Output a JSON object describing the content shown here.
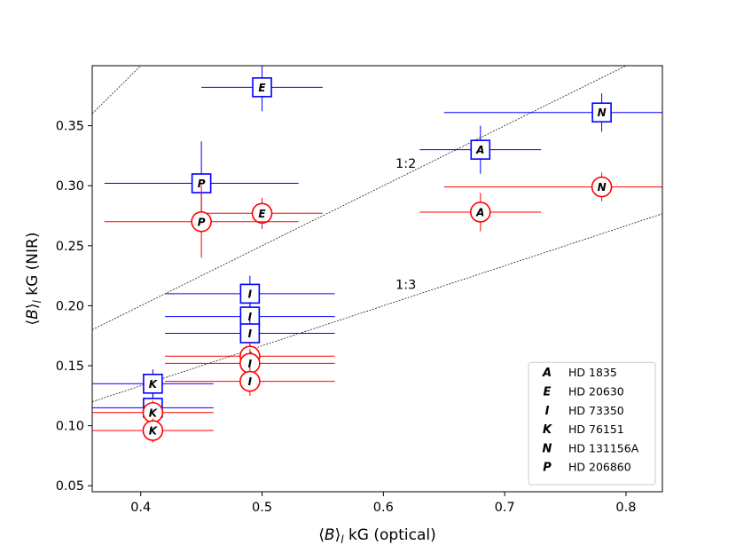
{
  "chart_data": {
    "type": "scatter",
    "title": "",
    "xlabel": "⟨B⟩ₗ kG (optical)",
    "xlabel_parts": {
      "open": "⟨",
      "var": "B",
      "close": "⟩",
      "sub": "l",
      "unit": " kG (optical)"
    },
    "ylabel": "⟨B⟩ₗ kG (NIR)",
    "ylabel_parts": {
      "open": "⟨",
      "var": "B",
      "close": "⟩",
      "sub": "l",
      "unit": " kG (NIR)"
    },
    "xlim": [
      0.36,
      0.83
    ],
    "ylim": [
      0.045,
      0.4
    ],
    "xticks": [
      0.4,
      0.5,
      0.6,
      0.7,
      0.8
    ],
    "xtick_labels": [
      "0.4",
      "0.5",
      "0.6",
      "0.7",
      "0.8"
    ],
    "yticks": [
      0.05,
      0.1,
      0.15,
      0.2,
      0.25,
      0.3,
      0.35
    ],
    "ytick_labels": [
      "0.05",
      "0.10",
      "0.15",
      "0.20",
      "0.25",
      "0.30",
      "0.35"
    ],
    "colors": {
      "blue": "#0000ff",
      "red": "#ff0000",
      "axis": "#000000"
    },
    "reference_lines": [
      {
        "name": "1:1",
        "slope": 1,
        "label": ""
      },
      {
        "name": "1:2",
        "slope": 0.5,
        "label": "1:2",
        "label_at": [
          0.61,
          0.315
        ]
      },
      {
        "name": "1:3",
        "slope": 0.3333,
        "label": "1:3",
        "label_at": [
          0.61,
          0.214
        ]
      }
    ],
    "series": [
      {
        "name": "blue-squares",
        "color": "#0000ff",
        "marker": "square",
        "points": [
          {
            "letter": "E",
            "x": 0.5,
            "y": 0.382,
            "xerr": [
              0.05,
              0.05
            ],
            "yerr": [
              0.02,
              0.02
            ]
          },
          {
            "letter": "N",
            "x": 0.78,
            "y": 0.361,
            "xerr": [
              0.13,
              0.13
            ],
            "yerr": [
              0.016,
              0.016
            ]
          },
          {
            "letter": "A",
            "x": 0.68,
            "y": 0.33,
            "xerr": [
              0.05,
              0.05
            ],
            "yerr": [
              0.02,
              0.02
            ]
          },
          {
            "letter": "P",
            "x": 0.45,
            "y": 0.302,
            "xerr": [
              0.08,
              0.08
            ],
            "yerr": [
              0.035,
              0.035
            ]
          },
          {
            "letter": "I",
            "x": 0.49,
            "y": 0.21,
            "xerr": [
              0.07,
              0.07
            ],
            "yerr": [
              0.015,
              0.015
            ]
          },
          {
            "letter": "I",
            "x": 0.49,
            "y": 0.191,
            "xerr": [
              0.07,
              0.07
            ],
            "yerr": [
              0.012,
              0.012
            ]
          },
          {
            "letter": "I",
            "x": 0.49,
            "y": 0.177,
            "xerr": [
              0.07,
              0.07
            ],
            "yerr": [
              0.012,
              0.012
            ]
          },
          {
            "letter": "K",
            "x": 0.41,
            "y": 0.135,
            "xerr": [
              0.05,
              0.05
            ],
            "yerr": [
              0.012,
              0.012
            ]
          },
          {
            "letter": "K",
            "x": 0.41,
            "y": 0.115,
            "xerr": [
              0.05,
              0.05
            ],
            "yerr": [
              0.012,
              0.012
            ]
          }
        ]
      },
      {
        "name": "red-circles",
        "color": "#ff0000",
        "marker": "circle",
        "points": [
          {
            "letter": "N",
            "x": 0.78,
            "y": 0.299,
            "xerr": [
              0.13,
              0.13
            ],
            "yerr": [
              0.012,
              0.012
            ]
          },
          {
            "letter": "E",
            "x": 0.5,
            "y": 0.277,
            "xerr": [
              0.05,
              0.05
            ],
            "yerr": [
              0.013,
              0.013
            ]
          },
          {
            "letter": "A",
            "x": 0.68,
            "y": 0.278,
            "xerr": [
              0.05,
              0.05
            ],
            "yerr": [
              0.016,
              0.016
            ]
          },
          {
            "letter": "P",
            "x": 0.45,
            "y": 0.27,
            "xerr": [
              0.08,
              0.08
            ],
            "yerr": [
              0.03,
              0.03
            ]
          },
          {
            "letter": "I",
            "x": 0.49,
            "y": 0.158,
            "xerr": [
              0.07,
              0.07
            ],
            "yerr": [
              0.012,
              0.012
            ]
          },
          {
            "letter": "I",
            "x": 0.49,
            "y": 0.152,
            "xerr": [
              0.07,
              0.07
            ],
            "yerr": [
              0.012,
              0.012
            ]
          },
          {
            "letter": "I",
            "x": 0.49,
            "y": 0.137,
            "xerr": [
              0.07,
              0.07
            ],
            "yerr": [
              0.012,
              0.012
            ]
          },
          {
            "letter": "K",
            "x": 0.41,
            "y": 0.111,
            "xerr": [
              0.05,
              0.05
            ],
            "yerr": [
              0.01,
              0.01
            ]
          },
          {
            "letter": "K",
            "x": 0.41,
            "y": 0.096,
            "xerr": [
              0.05,
              0.05
            ],
            "yerr": [
              0.01,
              0.01
            ]
          }
        ]
      }
    ],
    "legend": {
      "placement": "bottom-right",
      "entries": [
        {
          "letter": "A",
          "label": "HD 1835"
        },
        {
          "letter": "E",
          "label": "HD 20630"
        },
        {
          "letter": "I",
          "label": "HD 73350"
        },
        {
          "letter": "K",
          "label": "HD 76151"
        },
        {
          "letter": "N",
          "label": "HD 131156A"
        },
        {
          "letter": "P",
          "label": "HD 206860"
        }
      ]
    }
  }
}
